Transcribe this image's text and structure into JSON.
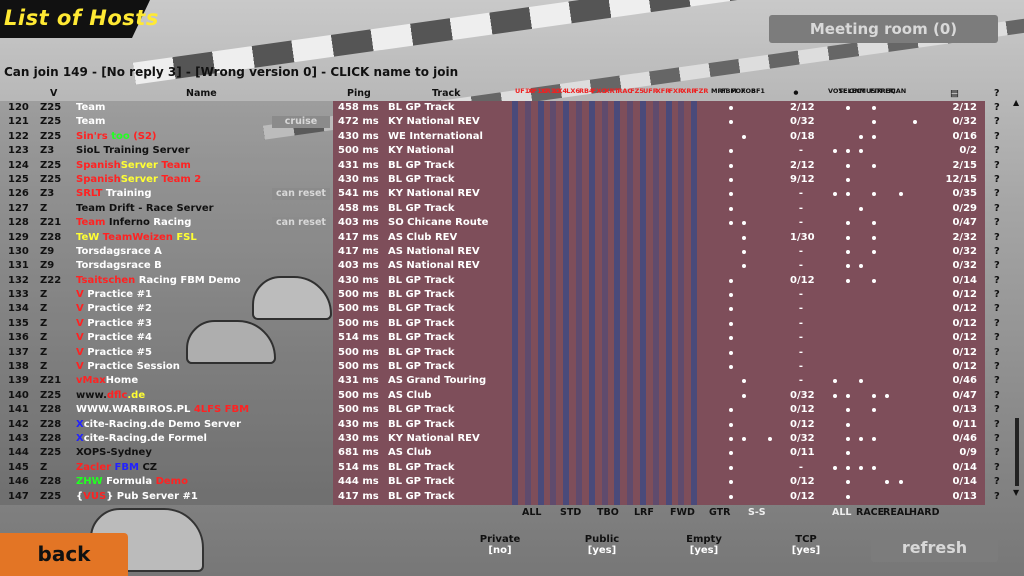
{
  "title": "List of Hosts",
  "meeting_room": "Meeting room (0)",
  "can_join_text": "Can join 149 - [No reply 3] - [Wrong version 0] - CLICK name to join",
  "headers": {
    "version": "V",
    "name": "Name",
    "ping": "Ping",
    "track": "Track"
  },
  "vertical_headers": [
    "UF10",
    "XF1G",
    "XR1G",
    "LX4",
    "LX6",
    "RB4",
    "FXO",
    "XRT",
    "RAC",
    "FZ5",
    "UFR",
    "XFR",
    "FXR",
    "XRR",
    "FZR"
  ],
  "settings_headers": [
    "MRT",
    "FBM",
    "FOX",
    "FO8",
    "BF1"
  ],
  "status_headers": [
    "VOTE",
    "SELECT",
    "ON",
    "MUSTPIT",
    "FIX",
    "REQ",
    "CAN"
  ],
  "rows": [
    {
      "n": "120",
      "v": "Z25",
      "name": [
        {
          "t": "",
          "c": "#2ff"
        },
        {
          "t": "Team",
          "c": "#fff"
        },
        {
          "t": " ",
          "c": "#2ff"
        }
      ],
      "ping": "458 ms",
      "track": "BL GP Track",
      "drivers": "2/12",
      "players": "2/12",
      "q": "?"
    },
    {
      "n": "121",
      "v": "Z25",
      "name": [
        {
          "t": " ",
          "c": "#2ff"
        },
        {
          "t": "Team",
          "c": "#fff"
        },
        {
          "t": " ",
          "c": "#2ff"
        }
      ],
      "tag": "cruise",
      "ping": "472 ms",
      "track": "KY National REV",
      "drivers": "0/32",
      "players": "0/32",
      "q": "?"
    },
    {
      "n": "122",
      "v": "Z25",
      "name": [
        {
          "t": "Sin'rs",
          "c": "#f22"
        },
        {
          "t": " ",
          "c": "#fff"
        },
        {
          "t": "too",
          "c": "#2f2"
        },
        {
          "t": " (S2)",
          "c": "#f22"
        }
      ],
      "ping": "430 ms",
      "track": "WE International",
      "drivers": "0/18",
      "players": "0/16",
      "q": "?"
    },
    {
      "n": "123",
      "v": "Z3",
      "name": [
        {
          "t": "SioL Training Server",
          "c": "#111"
        }
      ],
      "ping": "500 ms",
      "track": "KY National",
      "drivers": "-",
      "players": "0/2",
      "q": "?"
    },
    {
      "n": "124",
      "v": "Z25",
      "name": [
        {
          "t": "Spanish",
          "c": "#f22"
        },
        {
          "t": "Server",
          "c": "#ff3"
        },
        {
          "t": " Team",
          "c": "#f22"
        }
      ],
      "ping": "431 ms",
      "track": "BL GP Track",
      "drivers": "2/12",
      "players": "2/15",
      "q": "?"
    },
    {
      "n": "125",
      "v": "Z25",
      "name": [
        {
          "t": "Spanish",
          "c": "#f22"
        },
        {
          "t": "Server",
          "c": "#ff3"
        },
        {
          "t": " Team 2",
          "c": "#f22"
        }
      ],
      "ping": "430 ms",
      "track": "BL GP Track",
      "drivers": "9/12",
      "players": "12/15",
      "q": "?"
    },
    {
      "n": "126",
      "v": "Z3",
      "name": [
        {
          "t": "SRLT",
          "c": "#f22"
        },
        {
          "t": " Training",
          "c": "#fff"
        }
      ],
      "tag": "can reset",
      "ping": "541 ms",
      "track": "KY National REV",
      "drivers": "-",
      "players": "0/35",
      "q": "?"
    },
    {
      "n": "127",
      "v": "Z",
      "name": [
        {
          "t": "Team Drift - Race Server",
          "c": "#111"
        }
      ],
      "ping": "458 ms",
      "track": "BL GP Track",
      "drivers": "-",
      "players": "0/29",
      "q": "?"
    },
    {
      "n": "128",
      "v": "Z21",
      "name": [
        {
          "t": "Team",
          "c": "#f22"
        },
        {
          "t": " Inferno",
          "c": "#111"
        },
        {
          "t": " Racing",
          "c": "#fff"
        }
      ],
      "tag": "can reset",
      "ping": "403 ms",
      "track": "SO Chicane Route",
      "drivers": "-",
      "players": "0/47",
      "q": "?"
    },
    {
      "n": "129",
      "v": "Z28",
      "name": [
        {
          "t": "TeW",
          "c": "#ff3"
        },
        {
          "t": " TeamWeizen",
          "c": "#f22"
        },
        {
          "t": " FSL",
          "c": "#ff3"
        }
      ],
      "ping": "417 ms",
      "track": "AS Club REV",
      "drivers": "1/30",
      "players": "2/32",
      "q": "?"
    },
    {
      "n": "130",
      "v": "Z9",
      "name": [
        {
          "t": "Torsdagsrace A",
          "c": "#fff"
        }
      ],
      "ping": "417 ms",
      "track": "AS National REV",
      "drivers": "-",
      "players": "0/32",
      "q": "?"
    },
    {
      "n": "131",
      "v": "Z9",
      "name": [
        {
          "t": "Torsdagsrace B",
          "c": "#fff"
        }
      ],
      "ping": "403 ms",
      "track": "AS National REV",
      "drivers": "-",
      "players": "0/32",
      "q": "?"
    },
    {
      "n": "132",
      "v": "Z22",
      "name": [
        {
          "t": "Tsaitschen",
          "c": "#f22"
        },
        {
          "t": " Racing FBM Demo",
          "c": "#fff"
        }
      ],
      "ping": "430 ms",
      "track": "BL GP Track",
      "drivers": "0/12",
      "players": "0/14",
      "q": "?"
    },
    {
      "n": "133",
      "v": "Z",
      "name": [
        {
          "t": "V",
          "c": "#f22"
        },
        {
          "t": " Practice #1",
          "c": "#fff"
        }
      ],
      "ping": "500 ms",
      "track": "BL GP Track",
      "drivers": "-",
      "players": "0/12",
      "q": "?"
    },
    {
      "n": "134",
      "v": "Z",
      "name": [
        {
          "t": "V",
          "c": "#f22"
        },
        {
          "t": " Practice #2",
          "c": "#fff"
        }
      ],
      "ping": "500 ms",
      "track": "BL GP Track",
      "drivers": "-",
      "players": "0/12",
      "q": "?"
    },
    {
      "n": "135",
      "v": "Z",
      "name": [
        {
          "t": "V",
          "c": "#f22"
        },
        {
          "t": " Practice #3",
          "c": "#fff"
        }
      ],
      "ping": "500 ms",
      "track": "BL GP Track",
      "drivers": "-",
      "players": "0/12",
      "q": "?"
    },
    {
      "n": "136",
      "v": "Z",
      "name": [
        {
          "t": "V",
          "c": "#f22"
        },
        {
          "t": " Practice #4",
          "c": "#fff"
        }
      ],
      "ping": "514 ms",
      "track": "BL GP Track",
      "drivers": "-",
      "players": "0/12",
      "q": "?"
    },
    {
      "n": "137",
      "v": "Z",
      "name": [
        {
          "t": "V",
          "c": "#f22"
        },
        {
          "t": " Practice #5",
          "c": "#fff"
        }
      ],
      "ping": "500 ms",
      "track": "BL GP Track",
      "drivers": "-",
      "players": "0/12",
      "q": "?"
    },
    {
      "n": "138",
      "v": "Z",
      "name": [
        {
          "t": "V",
          "c": "#f22"
        },
        {
          "t": " Practice Session",
          "c": "#fff"
        }
      ],
      "ping": "500 ms",
      "track": "BL GP Track",
      "drivers": "-",
      "players": "0/12",
      "q": "?"
    },
    {
      "n": "139",
      "v": "Z21",
      "name": [
        {
          "t": "vMax",
          "c": "#f22"
        },
        {
          "t": "Home",
          "c": "#fff"
        }
      ],
      "ping": "431 ms",
      "track": "AS Grand Touring",
      "drivers": "-",
      "players": "0/46",
      "q": "?"
    },
    {
      "n": "140",
      "v": "Z25",
      "name": [
        {
          "t": "www.",
          "c": "#111"
        },
        {
          "t": "dflc",
          "c": "#f22"
        },
        {
          "t": ".de",
          "c": "#ff3"
        }
      ],
      "ping": "500 ms",
      "track": "AS Club",
      "drivers": "0/32",
      "players": "0/47",
      "q": "?"
    },
    {
      "n": "141",
      "v": "Z28",
      "name": [
        {
          "t": "WWW.WARBIROS.PL",
          "c": "#fff"
        },
        {
          "t": " 4LFS FBM",
          "c": "#f22"
        }
      ],
      "ping": "500 ms",
      "track": "BL GP Track",
      "drivers": "0/12",
      "players": "0/13",
      "q": "?"
    },
    {
      "n": "142",
      "v": "Z28",
      "name": [
        {
          "t": "X",
          "c": "#22f"
        },
        {
          "t": "cite-Racing.de Demo Server",
          "c": "#fff"
        }
      ],
      "ping": "430 ms",
      "track": "BL GP Track",
      "drivers": "0/12",
      "players": "0/11",
      "q": "?"
    },
    {
      "n": "143",
      "v": "Z28",
      "name": [
        {
          "t": "X",
          "c": "#22f"
        },
        {
          "t": "cite-Racing.de Formel",
          "c": "#fff"
        }
      ],
      "ping": "430 ms",
      "track": "KY National REV",
      "drivers": "0/32",
      "players": "0/46",
      "q": "?"
    },
    {
      "n": "144",
      "v": "Z25",
      "name": [
        {
          "t": "XOPS-Sydney",
          "c": "#111"
        }
      ],
      "ping": "681 ms",
      "track": "AS Club",
      "drivers": "0/11",
      "players": "0/9",
      "q": "?"
    },
    {
      "n": "145",
      "v": "Z",
      "name": [
        {
          "t": "Zacler",
          "c": "#f22"
        },
        {
          "t": " FBM",
          "c": "#22f"
        },
        {
          "t": " CZ",
          "c": "#111"
        }
      ],
      "ping": "514 ms",
      "track": "BL GP Track",
      "drivers": "-",
      "players": "0/14",
      "q": "?"
    },
    {
      "n": "146",
      "v": "Z28",
      "name": [
        {
          "t": "ZHW",
          "c": "#2f2"
        },
        {
          "t": " Formula",
          "c": "#fff"
        },
        {
          "t": " Demo",
          "c": "#f22"
        }
      ],
      "ping": "444 ms",
      "track": "BL GP Track",
      "drivers": "0/12",
      "players": "0/14",
      "q": "?"
    },
    {
      "n": "147",
      "v": "Z25",
      "name": [
        {
          "t": "{",
          "c": "#fff"
        },
        {
          "t": "VUS",
          "c": "#f22"
        },
        {
          "t": "} Pub Server #1",
          "c": "#fff"
        }
      ],
      "ping": "417 ms",
      "track": "BL GP Track",
      "drivers": "0/12",
      "players": "0/13",
      "q": "?"
    }
  ],
  "filters_cars": [
    "ALL",
    "STD",
    "TBO",
    "LRF",
    "FWD",
    "GTR",
    "S-S"
  ],
  "filters_status": [
    "ALL",
    "RACE",
    "REAL",
    "HARD"
  ],
  "options": [
    {
      "label": "Private",
      "value": "[no]"
    },
    {
      "label": "Public",
      "value": "[yes]"
    },
    {
      "label": "Empty",
      "value": "[yes]"
    },
    {
      "label": "TCP",
      "value": "[yes]"
    }
  ],
  "back_label": "back",
  "refresh_label": "refresh",
  "colors": {
    "title_yellow": "#ffe933",
    "back_orange": "#e37525",
    "grid_red": "#7e4e5a",
    "grid_blue": "#3a4a86"
  }
}
